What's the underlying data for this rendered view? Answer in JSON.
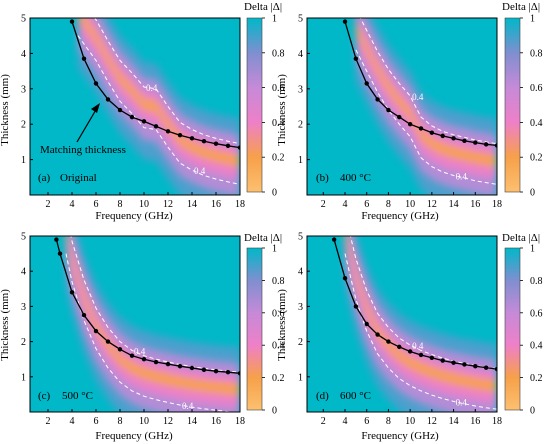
{
  "figure": {
    "colorbar_label": "Delta |Δ|",
    "contour_label": "0.4",
    "colors": {
      "high": "#00b8c8",
      "mid": "#7f8fd0",
      "violet": "#c68ad8",
      "pink": "#ee80c8",
      "orange": "#f7a04a",
      "low": "#fcc070",
      "curve": "#000000",
      "contour": "#ffffff"
    }
  },
  "chart_data": [
    {
      "type": "heatmap",
      "panel_label": "(a)",
      "title": "Original",
      "xlabel": "Frequency (GHz)",
      "ylabel": "Thickness (mm)",
      "xlim": [
        0.5,
        18
      ],
      "ylim": [
        0,
        5
      ],
      "x_ticks": [
        2,
        4,
        6,
        8,
        10,
        12,
        14,
        16,
        18
      ],
      "y_ticks": [
        1,
        2,
        3,
        4,
        5
      ],
      "colorbar": {
        "ticks": [
          0,
          0.2,
          0.4,
          0.6,
          0.8,
          1
        ],
        "range": [
          0,
          1
        ]
      },
      "annotation": "Matching thickness",
      "matching_thickness": {
        "x": [
          4,
          5,
          6,
          7,
          8,
          9,
          10,
          11,
          12,
          13,
          14,
          15,
          16,
          17,
          18
        ],
        "y": [
          4.9,
          3.85,
          3.15,
          2.7,
          2.4,
          2.2,
          2.08,
          1.94,
          1.8,
          1.69,
          1.6,
          1.52,
          1.45,
          1.39,
          1.34
        ]
      },
      "band_center": {
        "x": [
          4.5,
          6,
          7,
          8,
          9,
          10,
          11,
          12,
          13,
          14,
          15,
          16,
          17,
          18
        ],
        "y": [
          5.2,
          4.5,
          3.9,
          3.35,
          3.0,
          2.6,
          2.55,
          2.05,
          1.6,
          1.4,
          1.25,
          1.15,
          1.07,
          1.0
        ]
      }
    },
    {
      "type": "heatmap",
      "panel_label": "(b)",
      "title": "400 °C",
      "xlabel": "Frequency (GHz)",
      "ylabel": "Thickness (mm)",
      "xlim": [
        0.5,
        18
      ],
      "ylim": [
        0,
        5
      ],
      "x_ticks": [
        2,
        4,
        6,
        8,
        10,
        12,
        14,
        16,
        18
      ],
      "y_ticks": [
        1,
        2,
        3,
        4,
        5
      ],
      "colorbar": {
        "ticks": [
          0,
          0.2,
          0.4,
          0.6,
          0.8,
          1
        ],
        "range": [
          0,
          1
        ]
      },
      "matching_thickness": {
        "x": [
          4,
          5,
          6,
          7,
          8,
          9,
          10,
          11,
          12,
          13,
          14,
          15,
          16,
          17,
          18
        ],
        "y": [
          4.9,
          3.85,
          3.15,
          2.7,
          2.4,
          2.2,
          2.0,
          1.88,
          1.76,
          1.67,
          1.6,
          1.53,
          1.48,
          1.43,
          1.4
        ]
      },
      "band_center": {
        "x": [
          5,
          6,
          7,
          8,
          9,
          10,
          11,
          12,
          13,
          14,
          15,
          16,
          17,
          18
        ],
        "y": [
          4.8,
          4.2,
          3.6,
          3.1,
          2.7,
          2.35,
          1.75,
          1.5,
          1.35,
          1.25,
          1.18,
          1.1,
          1.05,
          1.0
        ]
      }
    },
    {
      "type": "heatmap",
      "panel_label": "(c)",
      "title": "500 °C",
      "xlabel": "Frequency (GHz)",
      "ylabel": "Thickness (mm)",
      "xlim": [
        0.5,
        18
      ],
      "ylim": [
        0,
        5
      ],
      "x_ticks": [
        2,
        4,
        6,
        8,
        10,
        12,
        14,
        16,
        18
      ],
      "y_ticks": [
        1,
        2,
        3,
        4,
        5
      ],
      "colorbar": {
        "ticks": [
          0,
          0.2,
          0.4,
          0.6,
          0.8,
          1
        ],
        "range": [
          0,
          1
        ]
      },
      "matching_thickness": {
        "x": [
          2.7,
          3,
          4,
          5,
          6,
          7,
          8,
          9,
          10,
          11,
          12,
          13,
          14,
          15,
          16,
          17,
          18
        ],
        "y": [
          4.9,
          4.5,
          3.4,
          2.75,
          2.3,
          2.0,
          1.78,
          1.6,
          1.5,
          1.42,
          1.36,
          1.3,
          1.25,
          1.2,
          1.16,
          1.13,
          1.1
        ]
      },
      "band_center": {
        "x": [
          3.5,
          4,
          5,
          6,
          7,
          8,
          9,
          10,
          11,
          12,
          13,
          14,
          15,
          16,
          17,
          18
        ],
        "y": [
          5.2,
          4.4,
          3.3,
          2.5,
          1.95,
          1.55,
          1.3,
          1.15,
          1.05,
          0.97,
          0.9,
          0.84,
          0.79,
          0.75,
          0.71,
          0.68
        ]
      }
    },
    {
      "type": "heatmap",
      "panel_label": "(d)",
      "title": "600 °C",
      "xlabel": "Frequency (GHz)",
      "ylabel": "Thickness (mm)",
      "xlim": [
        0.5,
        18
      ],
      "ylim": [
        0,
        5
      ],
      "x_ticks": [
        2,
        4,
        6,
        8,
        10,
        12,
        14,
        16,
        18
      ],
      "y_ticks": [
        1,
        2,
        3,
        4,
        5
      ],
      "colorbar": {
        "ticks": [
          0,
          0.2,
          0.4,
          0.6,
          0.8,
          1
        ],
        "range": [
          0,
          1
        ]
      },
      "matching_thickness": {
        "x": [
          3,
          4,
          5,
          6,
          7,
          8,
          9,
          10,
          11,
          12,
          13,
          14,
          15,
          16,
          17,
          18
        ],
        "y": [
          4.9,
          3.8,
          3.0,
          2.5,
          2.2,
          2.0,
          1.85,
          1.72,
          1.62,
          1.54,
          1.46,
          1.4,
          1.35,
          1.3,
          1.26,
          1.22
        ]
      },
      "band_center": {
        "x": [
          4,
          5,
          6,
          7,
          8,
          9,
          10,
          11,
          12,
          13,
          14,
          15,
          16,
          17,
          18
        ],
        "y": [
          5.2,
          3.9,
          3.0,
          2.35,
          1.95,
          1.65,
          1.45,
          1.3,
          1.18,
          1.08,
          1.0,
          0.93,
          0.87,
          0.82,
          0.78
        ]
      }
    }
  ]
}
